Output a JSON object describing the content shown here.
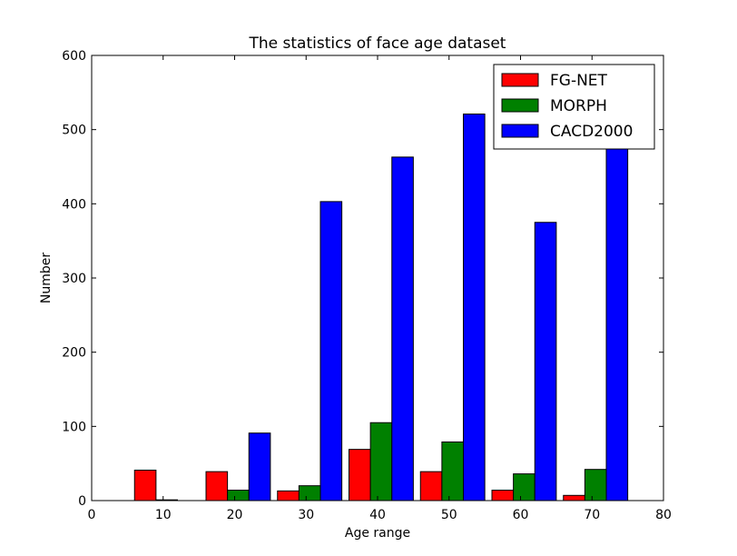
{
  "chart_data": {
    "type": "bar",
    "title": "The statistics of face age dataset",
    "xlabel": "Age range",
    "ylabel": "Number",
    "xlim": [
      0,
      80
    ],
    "ylim": [
      0,
      600
    ],
    "xticks": [
      0,
      10,
      20,
      30,
      40,
      50,
      60,
      70,
      80
    ],
    "yticks": [
      0,
      100,
      200,
      300,
      400,
      500,
      600
    ],
    "bar_width": 3,
    "grid": false,
    "legend_position": "top-right",
    "series": [
      {
        "name": "FG-NET",
        "color": "#ff0000",
        "x": [
          7.5,
          17.5,
          27.5,
          37.5,
          47.5,
          57.5,
          67.5
        ],
        "values": [
          41,
          39,
          13,
          69,
          39,
          14,
          7
        ]
      },
      {
        "name": "MORPH",
        "color": "#008000",
        "x": [
          10.5,
          20.5,
          30.5,
          40.5,
          50.5,
          60.5,
          70.5
        ],
        "values": [
          1,
          14,
          20,
          105,
          79,
          36,
          42
        ]
      },
      {
        "name": "CACD2000",
        "color": "#0000ff",
        "x": [
          13.5,
          23.5,
          33.5,
          43.5,
          53.5,
          63.5,
          73.5
        ],
        "values": [
          0,
          91,
          403,
          463,
          521,
          375,
          478
        ]
      }
    ]
  }
}
